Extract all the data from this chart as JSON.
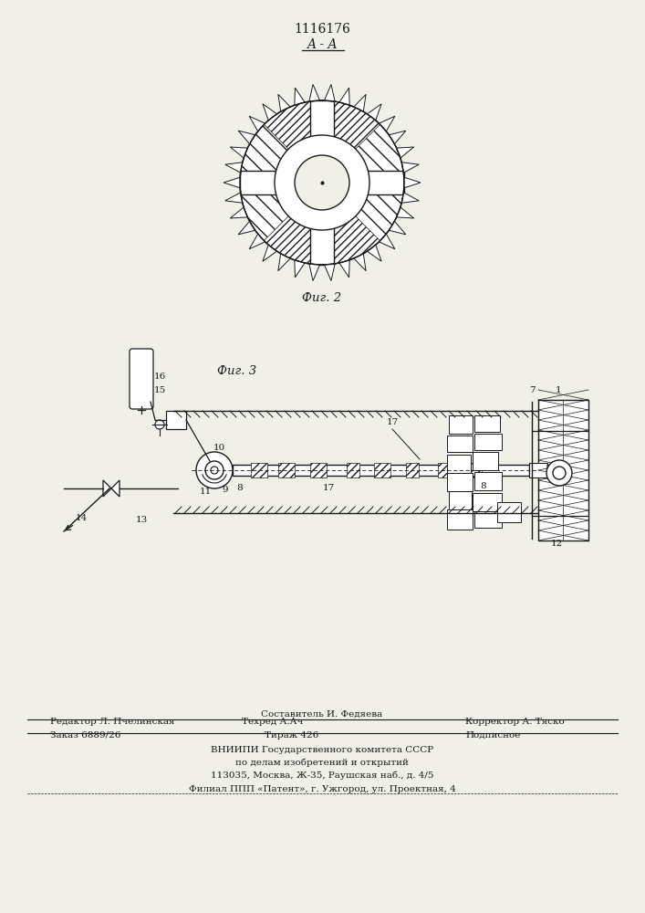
{
  "bg_color": "#f0efe8",
  "title_text": "1116176",
  "section_label": "A - A",
  "fig2_caption": "Фиг. 2",
  "fig3_caption": "Фиг. 3",
  "footer_line0": "Составитель И. Федяева",
  "footer_line1a": "Редактор Л. Пчелинская",
  "footer_line1b": "Техред А.Ач",
  "footer_line1c": "Корректор А. Тяско",
  "footer_line2a": "Заказ 6889/26",
  "footer_line2b": "Тираж 426",
  "footer_line2c": "Подписное",
  "footer_line3": "ВНИИПИ Государственного комитета СССР",
  "footer_line4": "по делам изобретений и открытий",
  "footer_line5": "113035, Москва, Ж-35, Раушская наб., д. 4/5",
  "footer_line6": "Филиал ППП «Патент», г. Ужгород, ул. Проектная, 4"
}
